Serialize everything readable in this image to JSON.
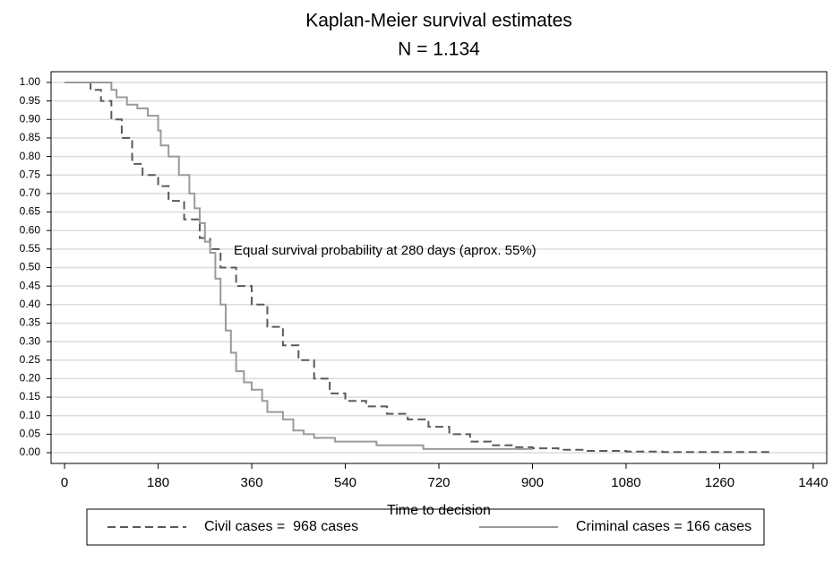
{
  "chart_data": {
    "type": "line",
    "drawstyle": "steps-post",
    "title": "Kaplan-Meier survival estimates",
    "subtitle": "N = 1.134",
    "xlabel": "Time to decision",
    "annotation": "Equal survival probability at 280 days (aprox. 55%)",
    "xlim": [
      -26,
      1466
    ],
    "ylim": [
      -0.029,
      1.029
    ],
    "xticks": [
      0,
      180,
      360,
      540,
      720,
      900,
      1080,
      1260,
      1440
    ],
    "yticks": [
      {
        "value": 1.0,
        "label": "1.00"
      },
      {
        "value": 0.95,
        "label": "0.95"
      },
      {
        "value": 0.9,
        "label": "0.90"
      },
      {
        "value": 0.85,
        "label": "0.85"
      },
      {
        "value": 0.8,
        "label": "0.80"
      },
      {
        "value": 0.75,
        "label": "0.75"
      },
      {
        "value": 0.7,
        "label": "0.70"
      },
      {
        "value": 0.65,
        "label": "0.65"
      },
      {
        "value": 0.6,
        "label": "0.60"
      },
      {
        "value": 0.55,
        "label": "0.55"
      },
      {
        "value": 0.5,
        "label": "0.50"
      },
      {
        "value": 0.45,
        "label": "0.45"
      },
      {
        "value": 0.4,
        "label": "0.40"
      },
      {
        "value": 0.35,
        "label": "0.35"
      },
      {
        "value": 0.3,
        "label": "0.30"
      },
      {
        "value": 0.25,
        "label": "0.25"
      },
      {
        "value": 0.2,
        "label": "0.20"
      },
      {
        "value": 0.15,
        "label": "0.15"
      },
      {
        "value": 0.1,
        "label": "0.10"
      },
      {
        "value": 0.05,
        "label": "0.05"
      },
      {
        "value": 0.0,
        "label": "0.00"
      }
    ],
    "grid": true,
    "legend": "bottom",
    "series": [
      {
        "name": "Civil cases =  968 cases",
        "color": "#5a5a5a",
        "dash": true,
        "x": [
          0,
          30,
          50,
          70,
          90,
          110,
          130,
          150,
          180,
          200,
          230,
          260,
          280,
          300,
          330,
          360,
          390,
          420,
          450,
          480,
          510,
          540,
          580,
          620,
          660,
          700,
          740,
          780,
          820,
          860,
          900,
          950,
          1000,
          1080,
          1150,
          1360
        ],
        "values": [
          1.0,
          1.0,
          0.98,
          0.95,
          0.9,
          0.85,
          0.78,
          0.75,
          0.72,
          0.68,
          0.63,
          0.58,
          0.55,
          0.5,
          0.45,
          0.4,
          0.34,
          0.29,
          0.25,
          0.2,
          0.16,
          0.14,
          0.125,
          0.105,
          0.09,
          0.07,
          0.05,
          0.03,
          0.02,
          0.015,
          0.012,
          0.008,
          0.005,
          0.003,
          0.002,
          0.002
        ]
      },
      {
        "name": "Criminal cases = 166 cases",
        "color": "#9a9a9a",
        "dash": false,
        "x": [
          0,
          80,
          90,
          100,
          120,
          140,
          160,
          180,
          185,
          200,
          220,
          240,
          250,
          260,
          270,
          280,
          290,
          300,
          310,
          320,
          330,
          345,
          360,
          380,
          390,
          420,
          440,
          460,
          480,
          520,
          600,
          690,
          900
        ],
        "values": [
          1.0,
          1.0,
          0.98,
          0.96,
          0.94,
          0.93,
          0.91,
          0.87,
          0.83,
          0.8,
          0.75,
          0.7,
          0.66,
          0.62,
          0.57,
          0.54,
          0.47,
          0.4,
          0.33,
          0.27,
          0.22,
          0.19,
          0.17,
          0.14,
          0.11,
          0.09,
          0.06,
          0.05,
          0.04,
          0.03,
          0.02,
          0.01,
          0.01
        ]
      }
    ]
  }
}
